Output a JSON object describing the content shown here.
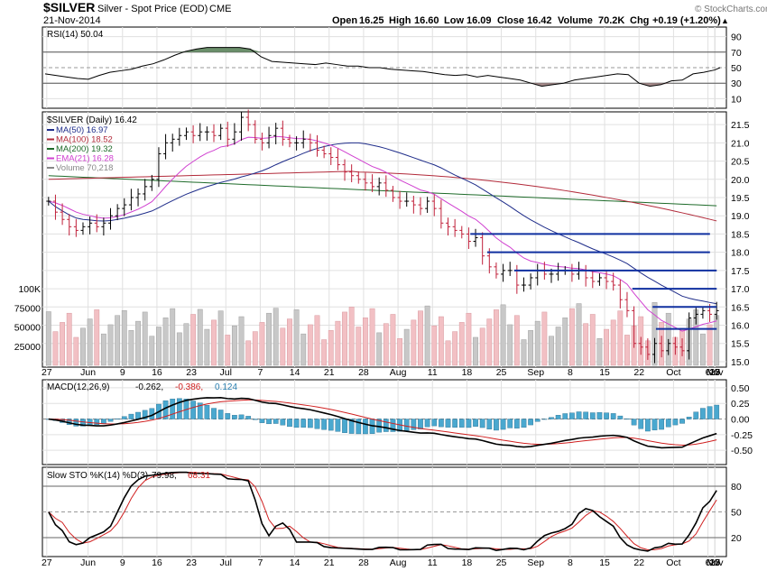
{
  "header": {
    "symbol": "$SILVER",
    "name": "Silver - Spot Price (EOD)",
    "exchange": "CME",
    "date": "21-Nov-2014",
    "open_label": "Open",
    "open": "16.25",
    "high_label": "High",
    "high": "16.60",
    "low_label": "Low",
    "low": "16.09",
    "close_label": "Close",
    "close": "16.42",
    "volume_label": "Volume",
    "volume": "70.2K",
    "chg_label": "Chg",
    "chg": "+0.19 (+1.20%)",
    "watermark": "© StockCharts.com"
  },
  "chart_data": [
    {
      "panel": "rsi",
      "type": "line",
      "title": "RSI(14) 50.04",
      "ylim": [
        0,
        100
      ],
      "y_ticks": [
        10,
        30,
        50,
        70,
        90
      ],
      "levels": [
        30,
        70
      ],
      "series": [
        {
          "name": "RSI(14)",
          "color": "#000000",
          "x": [
            0,
            2,
            4,
            6,
            8,
            10,
            12,
            14,
            16,
            18,
            20,
            22,
            24,
            26,
            28,
            30,
            32,
            34,
            36,
            38,
            40,
            42,
            44,
            46,
            48,
            50,
            52,
            54,
            56,
            58,
            60,
            62,
            64,
            66,
            68,
            70,
            72,
            74,
            76,
            78,
            80,
            82,
            84,
            86,
            88,
            90,
            92,
            94,
            96,
            98,
            100,
            102,
            104,
            106,
            108,
            110,
            112,
            114,
            116,
            118,
            120,
            122,
            124,
            125
          ],
          "values": [
            42,
            40,
            38,
            36,
            35,
            40,
            44,
            46,
            48,
            52,
            55,
            60,
            66,
            71,
            74,
            76,
            76,
            76,
            76,
            74,
            64,
            58,
            57,
            56,
            55,
            54,
            56,
            54,
            52,
            52,
            50,
            50,
            48,
            47,
            46,
            45,
            43,
            41,
            40,
            41,
            38,
            40,
            38,
            36,
            34,
            30,
            26,
            28,
            30,
            34,
            36,
            38,
            40,
            42,
            41,
            30,
            26,
            28,
            33,
            34,
            42,
            44,
            47,
            50
          ]
        }
      ],
      "overbought_color": "#6b8f6b",
      "oversold_color": "#a58a8a"
    },
    {
      "panel": "price",
      "type": "ohlc",
      "legend": [
        {
          "label": "$SILVER (Daily) 16.42",
          "color": "#000000"
        },
        {
          "label": "MA(50) 16.97",
          "color": "#1f2d8a"
        },
        {
          "label": "MA(100) 18.52",
          "color": "#b22a3a"
        },
        {
          "label": "MA(200) 19.32",
          "color": "#1e6b2a"
        },
        {
          "label": "EMA(21) 16.28",
          "color": "#d040d0"
        },
        {
          "label": "Volume 70,218",
          "color": "#888888"
        }
      ],
      "ylim": [
        14.9,
        21.8
      ],
      "y_ticks": [
        15.0,
        15.5,
        16.0,
        16.5,
        17.0,
        17.5,
        18.0,
        18.5,
        19.0,
        19.5,
        20.0,
        20.5,
        21.0,
        21.5
      ],
      "x_labels": [
        "27",
        "Jun",
        "9",
        "16",
        "23",
        "Jul",
        "7",
        "14",
        "21",
        "28",
        "Aug",
        "11",
        "18",
        "25",
        "Sep",
        "8",
        "15",
        "22",
        "Oct",
        "6",
        "13",
        "20",
        "27",
        "Nov",
        "10",
        "17"
      ],
      "x_label_idx": [
        0,
        6,
        11,
        16,
        21,
        26,
        31,
        36,
        41,
        46,
        51,
        56,
        61,
        66,
        71,
        76,
        81,
        86,
        91,
        96,
        101,
        106,
        111,
        116,
        121,
        126
      ],
      "close": [
        19.4,
        19.1,
        18.9,
        18.7,
        18.6,
        18.7,
        18.8,
        18.7,
        18.8,
        19.0,
        19.2,
        19.3,
        19.5,
        19.6,
        19.8,
        20.0,
        20.7,
        21.0,
        21.1,
        21.2,
        21.3,
        21.2,
        21.3,
        21.3,
        21.2,
        21.4,
        21.1,
        21.3,
        21.7,
        21.5,
        21.1,
        21.0,
        21.2,
        21.4,
        21.1,
        21.0,
        21.0,
        21.1,
        21.0,
        20.8,
        20.7,
        20.6,
        20.4,
        20.2,
        20.1,
        20.0,
        19.9,
        19.8,
        19.9,
        19.7,
        19.5,
        19.4,
        19.4,
        19.3,
        19.2,
        19.4,
        19.2,
        18.8,
        18.7,
        18.6,
        18.5,
        18.3,
        18.4,
        17.9,
        17.6,
        17.4,
        17.5,
        17.5,
        17.1,
        17.1,
        17.3,
        17.5,
        17.4,
        17.4,
        17.5,
        17.5,
        17.4,
        17.5,
        17.3,
        17.2,
        17.3,
        17.2,
        17.1,
        16.7,
        16.4,
        15.5,
        15.4,
        15.2,
        15.5,
        15.3,
        15.5,
        15.4,
        15.3,
        16.2,
        16.3,
        16.4,
        16.3,
        16.4
      ],
      "ma50_color": "#1f2d8a",
      "ma100_color": "#b22a3a",
      "ma200_color": "#1e6b2a",
      "ema21_color": "#d040d0",
      "support_lines": [
        18.5,
        18.0,
        17.5,
        17.0,
        16.5,
        15.9
      ],
      "volume_axis_ticks": [
        "100K",
        "75000",
        "50000",
        "25000"
      ],
      "volume_axis_values": [
        100000,
        75000,
        50000,
        25000
      ]
    },
    {
      "panel": "macd",
      "type": "line",
      "title": "MACD(12,26,9)",
      "title_values": [
        "-0.262",
        "-0.386",
        "0.124"
      ],
      "title_colors": [
        "#000000",
        "#d02020",
        "#2a7fb0"
      ],
      "ylim": [
        -0.7,
        0.6
      ],
      "y_ticks": [
        -0.5,
        -0.25,
        0.0,
        0.25,
        0.5
      ],
      "y_tick_labels": [
        "-0.50",
        "-0.25",
        "0.00",
        "0.25",
        "0.50"
      ],
      "macd_color": "#000000",
      "signal_color": "#d02020",
      "hist_color": "#4aa8cf"
    },
    {
      "panel": "sto",
      "type": "line",
      "title": "Slow STO %K(14) %D(3)",
      "title_values": [
        "79.98",
        "68.31"
      ],
      "title_colors": [
        "#000000",
        "#d02020"
      ],
      "ylim": [
        0,
        100
      ],
      "y_ticks": [
        20,
        50,
        80
      ],
      "k_color": "#000000",
      "d_color": "#d02020"
    }
  ]
}
